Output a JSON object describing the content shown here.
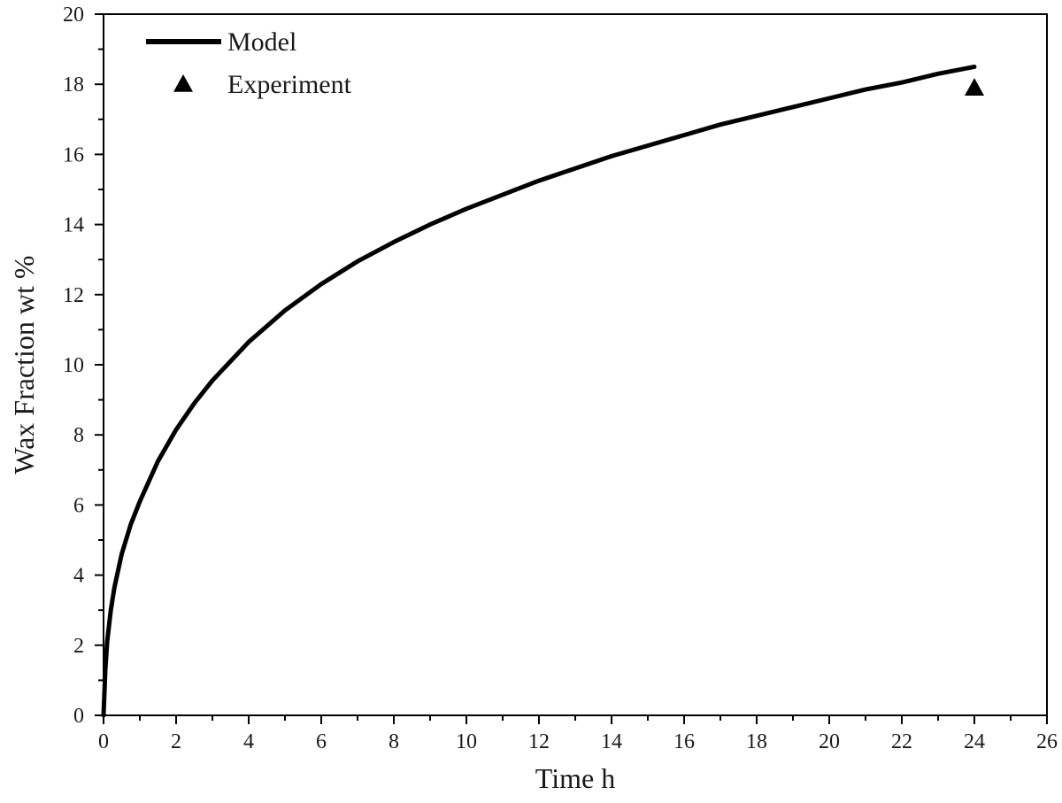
{
  "chart_data": {
    "type": "line",
    "xlabel": "Time h",
    "ylabel": "Wax Fraction wt %",
    "xlim": [
      0,
      26
    ],
    "ylim": [
      0,
      20
    ],
    "x_ticks": [
      0,
      2,
      4,
      6,
      8,
      10,
      12,
      14,
      16,
      18,
      20,
      22,
      24,
      26
    ],
    "y_ticks": [
      0,
      2,
      4,
      6,
      8,
      10,
      12,
      14,
      16,
      18,
      20
    ],
    "grid": false,
    "legend_position": "top-left",
    "series": [
      {
        "name": "Model",
        "kind": "line",
        "color": "#000000",
        "x": [
          0,
          0.05,
          0.1,
          0.2,
          0.3,
          0.5,
          0.75,
          1,
          1.5,
          2,
          2.5,
          3,
          4,
          5,
          6,
          7,
          8,
          9,
          10,
          11,
          12,
          13,
          14,
          15,
          16,
          17,
          18,
          19,
          20,
          21,
          22,
          23,
          24
        ],
        "y": [
          0,
          1.3,
          2.1,
          3.0,
          3.65,
          4.6,
          5.45,
          6.1,
          7.25,
          8.15,
          8.9,
          9.55,
          10.65,
          11.55,
          12.3,
          12.95,
          13.5,
          14.0,
          14.45,
          14.85,
          15.25,
          15.6,
          15.95,
          16.25,
          16.55,
          16.85,
          17.1,
          17.35,
          17.6,
          17.85,
          18.05,
          18.3,
          18.5
        ]
      },
      {
        "name": "Experiment",
        "kind": "scatter",
        "marker": "triangle",
        "color": "#000000",
        "x": [
          24
        ],
        "y": [
          17.9
        ]
      }
    ]
  }
}
